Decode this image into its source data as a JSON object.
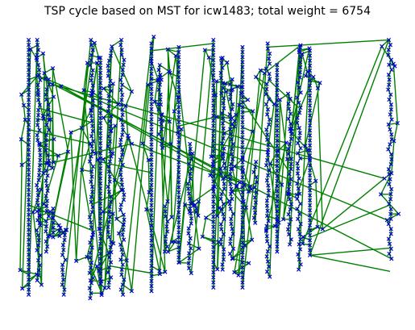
{
  "chart_data": {
    "type": "scatter",
    "title": "TSP cycle based on MST for icw1483; total weight = 6754",
    "axes_visible": false,
    "grid": false,
    "xlim": [
      0,
      1000
    ],
    "ylim": [
      0,
      760
    ],
    "edge_color": "#008000",
    "marker_color": "#0000cc",
    "marker": "x",
    "columns": [
      {
        "x": 8,
        "y_min": 10,
        "y_max": 720
      },
      {
        "x": 35,
        "y_min": 10,
        "y_max": 680
      },
      {
        "x": 60,
        "y_min": 120,
        "y_max": 600
      },
      {
        "x": 75,
        "y_min": 480,
        "y_max": 560
      },
      {
        "x": 105,
        "y_min": 540,
        "y_max": 720
      },
      {
        "x": 180,
        "y_min": 10,
        "y_max": 730
      },
      {
        "x": 205,
        "y_min": 60,
        "y_max": 690
      },
      {
        "x": 230,
        "y_min": 40,
        "y_max": 700
      },
      {
        "x": 265,
        "y_min": 10,
        "y_max": 720
      },
      {
        "x": 345,
        "y_min": 20,
        "y_max": 710
      },
      {
        "x": 370,
        "y_min": 80,
        "y_max": 300
      },
      {
        "x": 385,
        "y_min": 460,
        "y_max": 600
      },
      {
        "x": 420,
        "y_min": 30,
        "y_max": 630
      },
      {
        "x": 450,
        "y_min": 300,
        "y_max": 660
      },
      {
        "x": 470,
        "y_min": 460,
        "y_max": 500
      },
      {
        "x": 515,
        "y_min": 10,
        "y_max": 700
      },
      {
        "x": 540,
        "y_min": 60,
        "y_max": 650
      },
      {
        "x": 565,
        "y_min": 120,
        "y_max": 620
      },
      {
        "x": 595,
        "y_min": 30,
        "y_max": 700
      },
      {
        "x": 630,
        "y_min": 350,
        "y_max": 520
      },
      {
        "x": 665,
        "y_min": 20,
        "y_max": 670
      },
      {
        "x": 690,
        "y_min": 80,
        "y_max": 600
      },
      {
        "x": 725,
        "y_min": 160,
        "y_max": 580
      },
      {
        "x": 750,
        "y_min": 30,
        "y_max": 650
      },
      {
        "x": 780,
        "y_min": 40,
        "y_max": 610
      },
      {
        "x": 1000,
        "y_min": 10,
        "y_max": 620
      }
    ],
    "long_edges": [
      [
        [
          780,
          610
        ],
        [
          1000,
          655
        ]
      ],
      [
        [
          780,
          610
        ],
        [
          1000,
          590
        ]
      ],
      [
        [
          780,
          560
        ],
        [
          1000,
          470
        ]
      ],
      [
        [
          1000,
          10
        ],
        [
          665,
          30
        ]
      ],
      [
        [
          8,
          260
        ],
        [
          180,
          300
        ]
      ],
      [
        [
          35,
          200
        ],
        [
          180,
          240
        ]
      ],
      [
        [
          180,
          470
        ],
        [
          265,
          430
        ]
      ],
      [
        [
          205,
          350
        ],
        [
          345,
          380
        ]
      ],
      [
        [
          345,
          40
        ],
        [
          515,
          20
        ]
      ],
      [
        [
          420,
          250
        ],
        [
          540,
          220
        ]
      ],
      [
        [
          515,
          300
        ],
        [
          665,
          320
        ]
      ],
      [
        [
          595,
          180
        ],
        [
          725,
          380
        ]
      ],
      [
        [
          665,
          120
        ],
        [
          750,
          200
        ]
      ],
      [
        [
          8,
          470
        ],
        [
          180,
          540
        ]
      ],
      [
        [
          230,
          640
        ],
        [
          345,
          660
        ]
      ]
    ]
  }
}
